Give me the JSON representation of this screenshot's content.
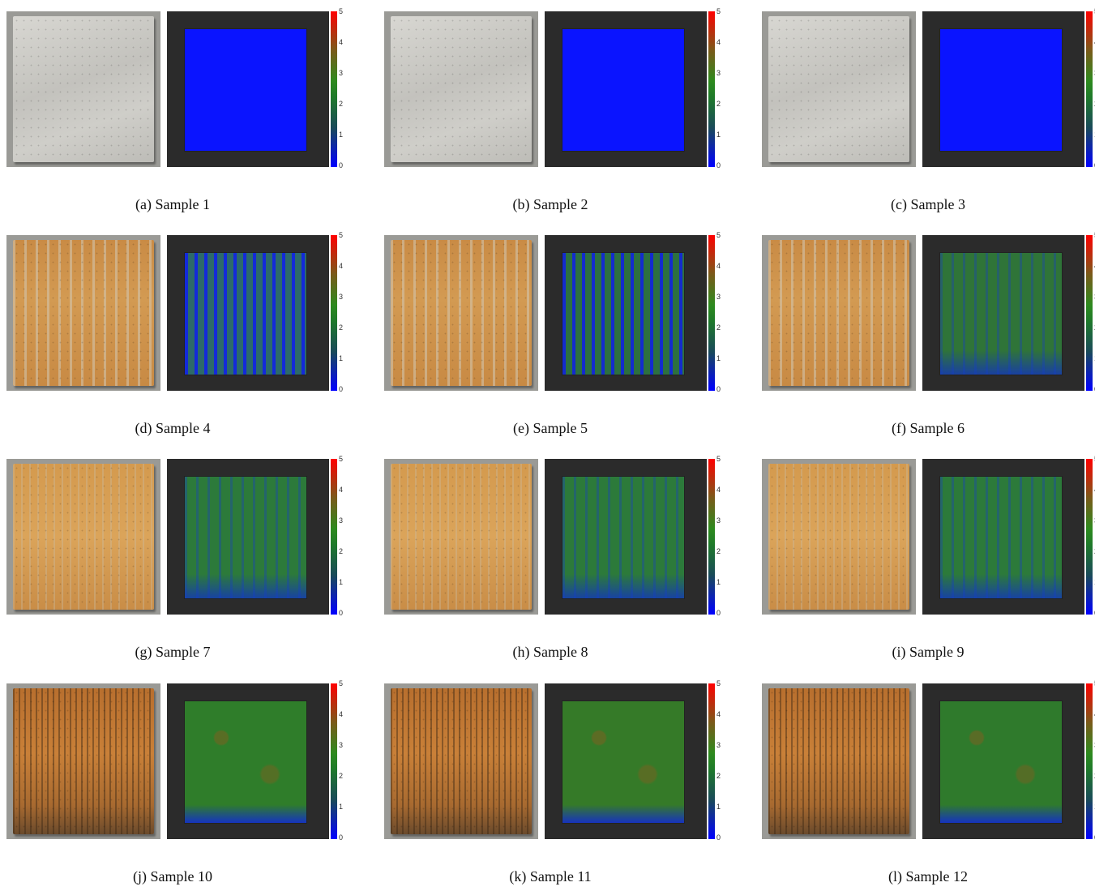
{
  "figure": {
    "colorbar_ticks": [
      "5",
      "4",
      "3",
      "2",
      "1",
      "0"
    ],
    "colorbar_range": [
      0,
      5
    ],
    "colormap": [
      "#0000ff",
      "#1f7a2a",
      "#ff0000"
    ],
    "panels": [
      {
        "caption": "(a) Sample 1",
        "photo_style": "clean",
        "map_color": "#0a14ff",
        "map_texture": "solid"
      },
      {
        "caption": "(b) Sample 2",
        "photo_style": "clean",
        "map_color": "#0a14ff",
        "map_texture": "solid"
      },
      {
        "caption": "(c) Sample 3",
        "photo_style": "clean",
        "map_color": "#0a14ff",
        "map_texture": "solid"
      },
      {
        "caption": "(d) Sample 4",
        "photo_style": "rust1",
        "map_color": "#2d6a6a",
        "map_texture": "streaks-blue"
      },
      {
        "caption": "(e) Sample 5",
        "photo_style": "rust1",
        "map_color": "#2d7040",
        "map_texture": "streaks-blue"
      },
      {
        "caption": "(f) Sample 6",
        "photo_style": "rust1",
        "map_color": "#2f7438",
        "map_texture": "streaks-light"
      },
      {
        "caption": "(g) Sample 7",
        "photo_style": "rust2",
        "map_color": "#2c7a3a",
        "map_texture": "streaks-light"
      },
      {
        "caption": "(h) Sample 8",
        "photo_style": "rust2",
        "map_color": "#2c7a3a",
        "map_texture": "streaks-light"
      },
      {
        "caption": "(i) Sample 9",
        "photo_style": "rust2",
        "map_color": "#2c7a3a",
        "map_texture": "streaks-light"
      },
      {
        "caption": "(j) Sample 10",
        "photo_style": "rust3",
        "map_color": "#2f7d2a",
        "map_texture": "mottled"
      },
      {
        "caption": "(k) Sample 11",
        "photo_style": "rust3",
        "map_color": "#357a28",
        "map_texture": "mottled"
      },
      {
        "caption": "(l) Sample 12",
        "photo_style": "rust3",
        "map_color": "#2f7a2c",
        "map_texture": "mottled"
      }
    ]
  }
}
